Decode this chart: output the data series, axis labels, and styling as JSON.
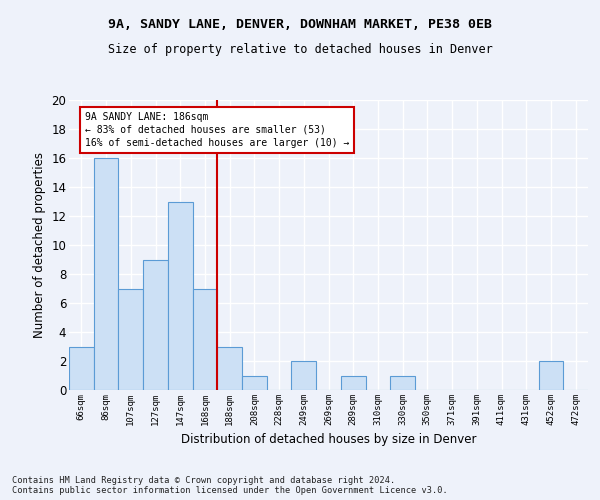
{
  "title1": "9A, SANDY LANE, DENVER, DOWNHAM MARKET, PE38 0EB",
  "title2": "Size of property relative to detached houses in Denver",
  "xlabel": "Distribution of detached houses by size in Denver",
  "ylabel": "Number of detached properties",
  "categories": [
    "66sqm",
    "86sqm",
    "107sqm",
    "127sqm",
    "147sqm",
    "168sqm",
    "188sqm",
    "208sqm",
    "228sqm",
    "249sqm",
    "269sqm",
    "289sqm",
    "310sqm",
    "330sqm",
    "350sqm",
    "371sqm",
    "391sqm",
    "411sqm",
    "431sqm",
    "452sqm",
    "472sqm"
  ],
  "values": [
    3,
    16,
    7,
    9,
    13,
    7,
    3,
    1,
    0,
    2,
    0,
    1,
    0,
    1,
    0,
    0,
    0,
    0,
    0,
    2,
    0
  ],
  "bar_color": "#cce0f5",
  "bar_edge_color": "#5b9bd5",
  "reference_line_index": 6,
  "reference_line_color": "#cc0000",
  "annotation_line1": "9A SANDY LANE: 186sqm",
  "annotation_line2": "← 83% of detached houses are smaller (53)",
  "annotation_line3": "16% of semi-detached houses are larger (10) →",
  "annotation_box_color": "#cc0000",
  "ylim": [
    0,
    20
  ],
  "yticks": [
    0,
    2,
    4,
    6,
    8,
    10,
    12,
    14,
    16,
    18,
    20
  ],
  "footer": "Contains HM Land Registry data © Crown copyright and database right 2024.\nContains public sector information licensed under the Open Government Licence v3.0.",
  "bg_color": "#eef2fa",
  "grid_color": "#ffffff"
}
